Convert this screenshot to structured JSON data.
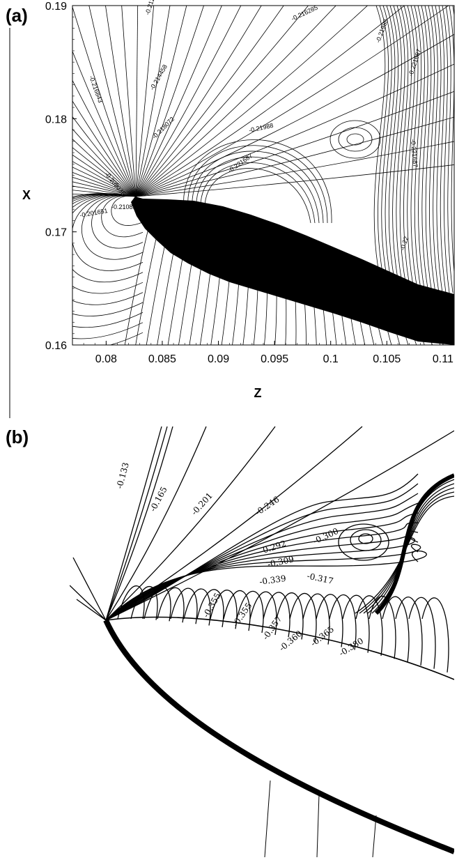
{
  "chart_data": [
    {
      "panel": "(a)",
      "type": "contour",
      "xlabel": "Z",
      "ylabel": "X",
      "xlim": [
        0.077,
        0.111
      ],
      "ylim": [
        0.16,
        0.19
      ],
      "xticks": [
        "0.08",
        "0.085",
        "0.09",
        "0.095",
        "0.1",
        "0.105",
        "0.11"
      ],
      "yticks": [
        "0.16",
        "0.17",
        "0.18",
        "0.19"
      ],
      "grid": false,
      "contour_labels": [
        "-0.212",
        "-0.216285",
        "-0.21988",
        "-0.221687",
        "-0.216843",
        "-0.214458",
        "-0.218072",
        "-0.21988",
        "-0.221687",
        "-0.209036",
        "-0.210851",
        "-0.201651",
        "-0.221687",
        "-0.22"
      ]
    },
    {
      "panel": "(b)",
      "type": "contour",
      "grid": false,
      "contour_labels": [
        "-0.133",
        "-0.165",
        "-0.201",
        "-0.246",
        "-0.292",
        "-0.300",
        "-0.309",
        "-0.317",
        "-0.339",
        "-0.355",
        "-0.355",
        "-0.357",
        "-0.360",
        "-0.365",
        "-0.380"
      ]
    }
  ]
}
